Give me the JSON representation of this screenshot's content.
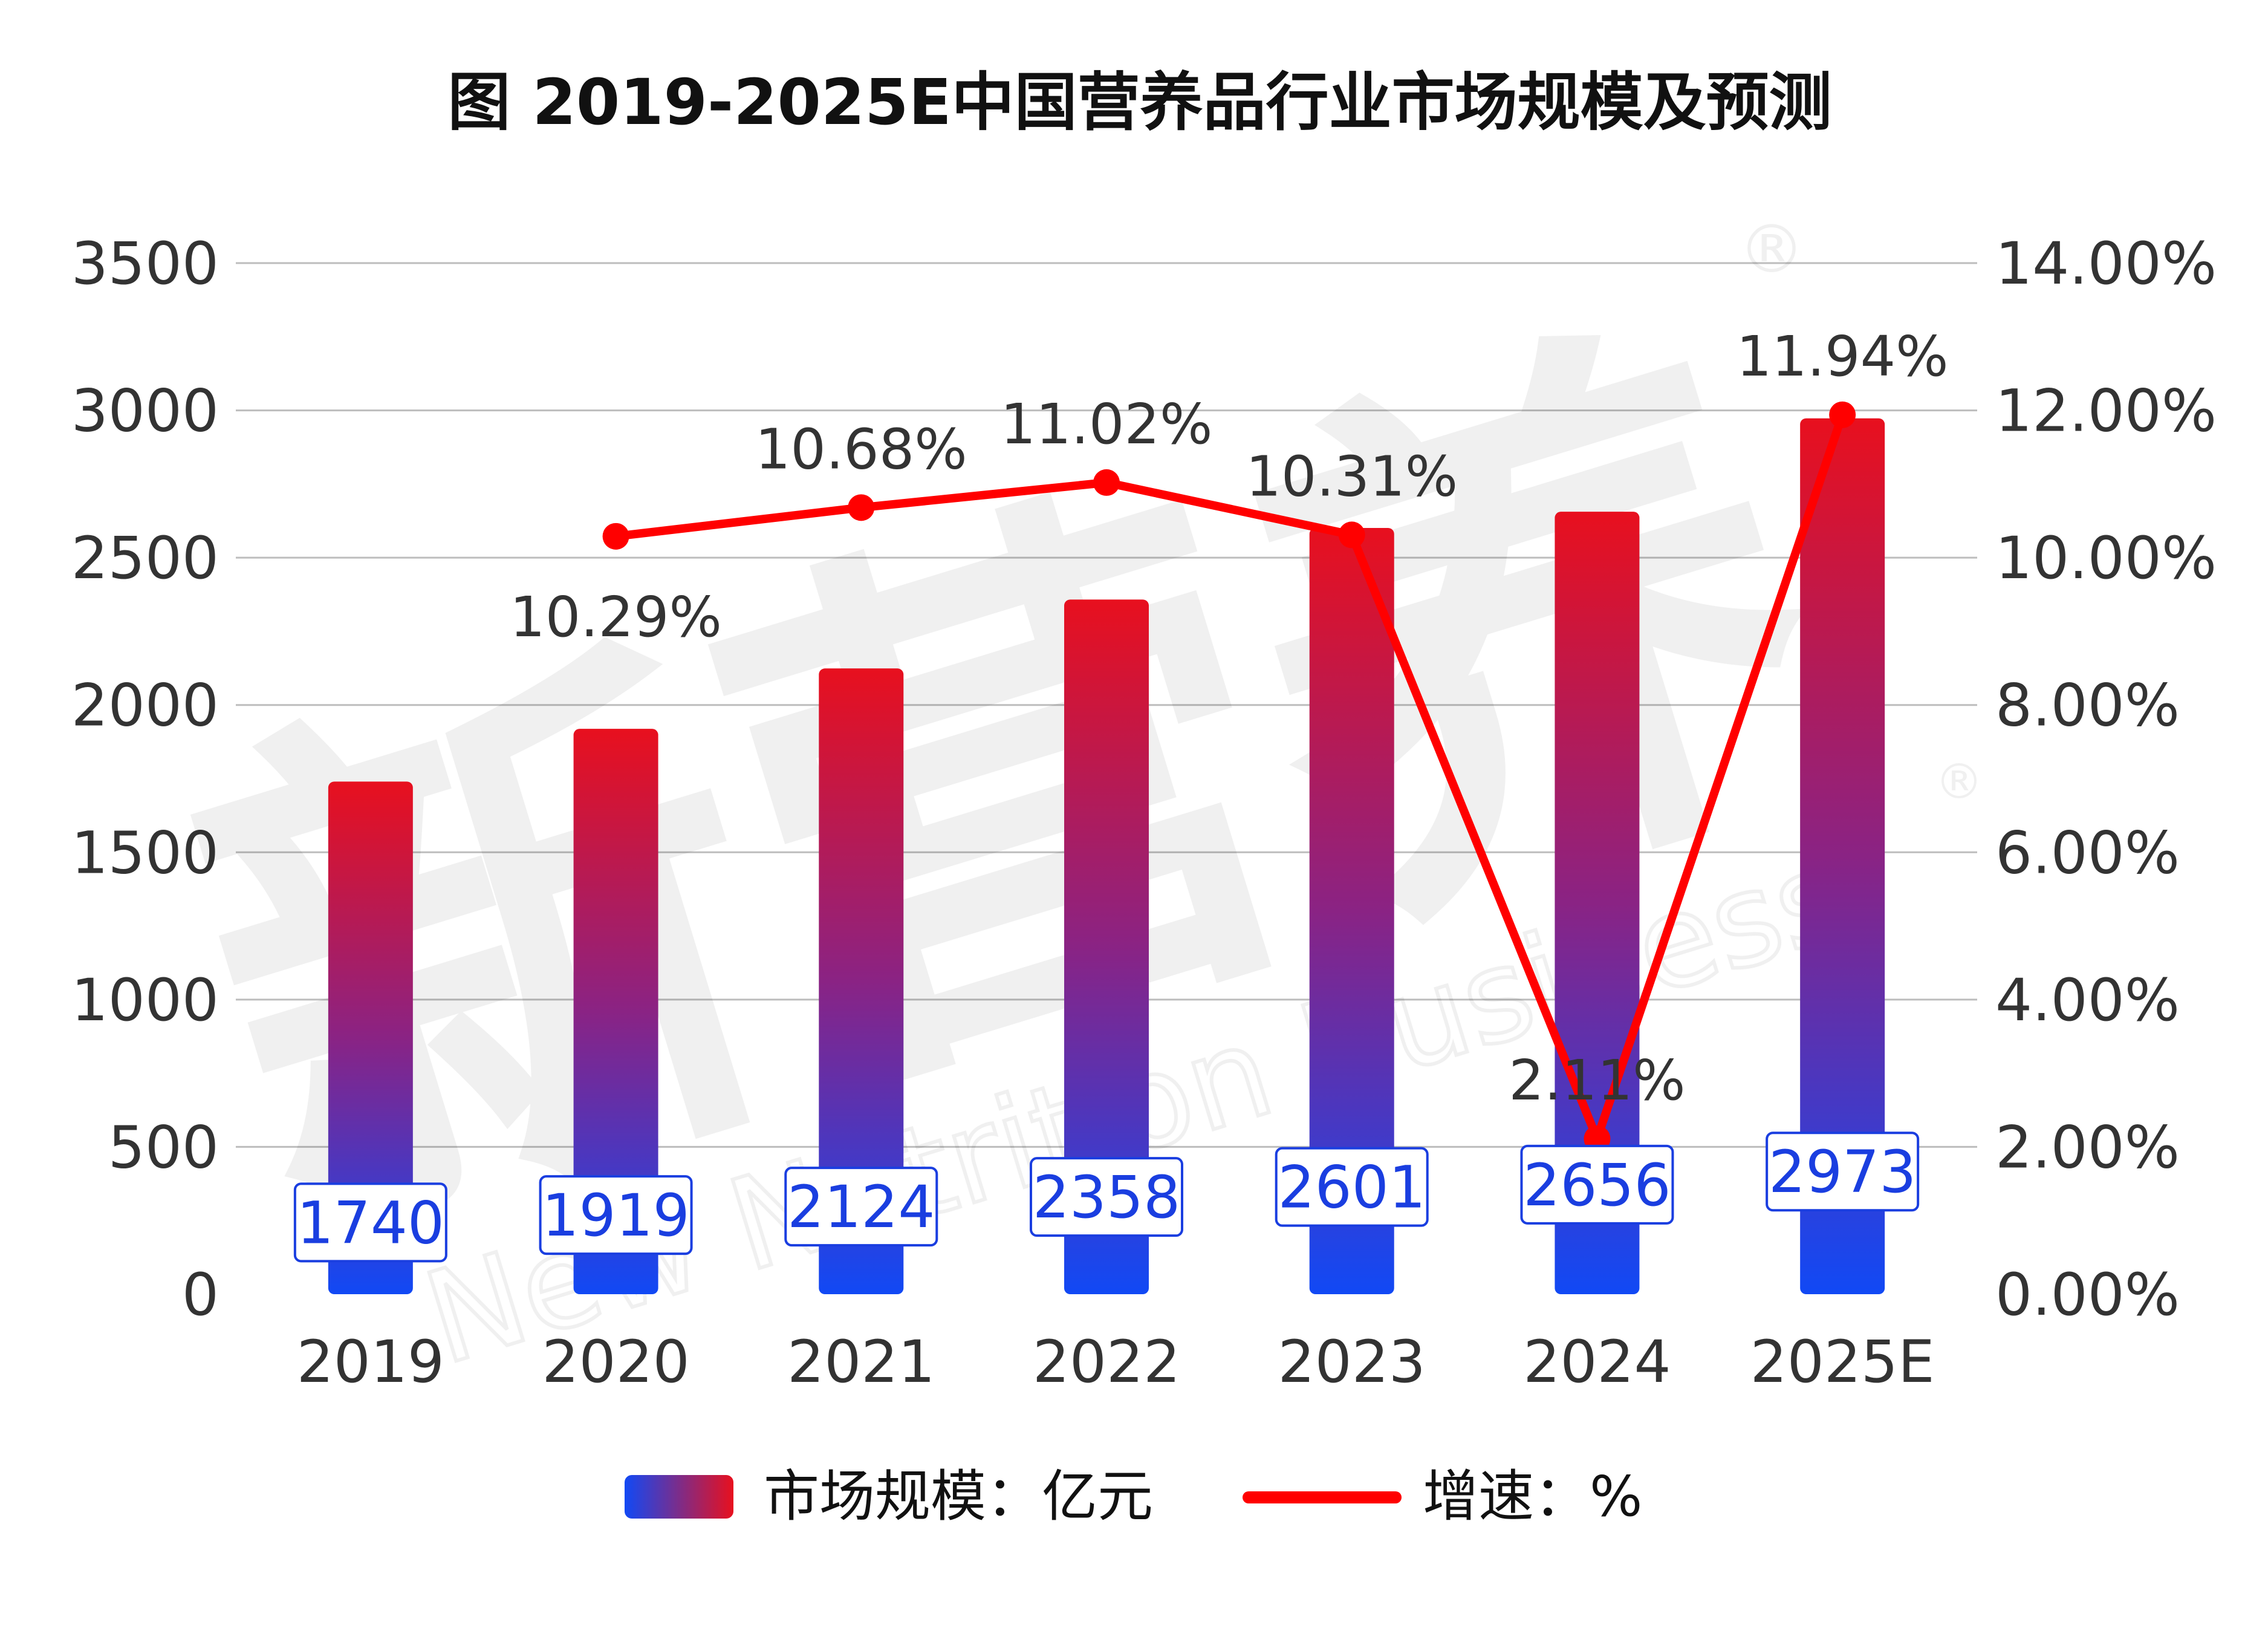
{
  "chart_data": {
    "type": "bar",
    "title": "图 2019-2025E中国营养品行业市场规模及预测",
    "categories": [
      "2019",
      "2020",
      "2021",
      "2022",
      "2023",
      "2024",
      "2025E"
    ],
    "series": [
      {
        "name": "市场规模：亿元",
        "type": "bar",
        "axis": "left",
        "values": [
          1740,
          1919,
          2124,
          2358,
          2601,
          2656,
          2973
        ],
        "labels": [
          "1740",
          "1919",
          "2124",
          "2358",
          "2601",
          "2656",
          "2973"
        ]
      },
      {
        "name": "增速：%",
        "type": "line",
        "axis": "right",
        "values": [
          null,
          10.29,
          10.68,
          11.02,
          10.31,
          2.11,
          11.94
        ],
        "labels": [
          null,
          "10.29%",
          "10.68%",
          "11.02%",
          "10.31%",
          "2.11%",
          "11.94%"
        ]
      }
    ],
    "y_left": {
      "range": [
        0,
        3500
      ],
      "ticks": [
        0,
        500,
        1000,
        1500,
        2000,
        2500,
        3000,
        3500
      ],
      "tick_labels": [
        "0",
        "500",
        "1000",
        "1500",
        "2000",
        "2500",
        "3000",
        "3500"
      ]
    },
    "y_right": {
      "range": [
        0,
        14
      ],
      "ticks": [
        0,
        2,
        4,
        6,
        8,
        10,
        12,
        14
      ],
      "tick_labels": [
        "0.00%",
        "2.00%",
        "4.00%",
        "6.00%",
        "8.00%",
        "10.00%",
        "12.00%",
        "14.00%"
      ]
    },
    "grid": true,
    "legend": "bottom-center",
    "colors": {
      "bar_top": "#e8101e",
      "bar_bottom": "#1149f5",
      "line": "#ff0000",
      "label_box_stroke": "#1a3ee0",
      "label_text": "#1a3ee0",
      "grid": "#bdbdbd"
    }
  },
  "watermark": {
    "brand": "新营养",
    "english": "New Nutrition Business",
    "registered": "®"
  }
}
